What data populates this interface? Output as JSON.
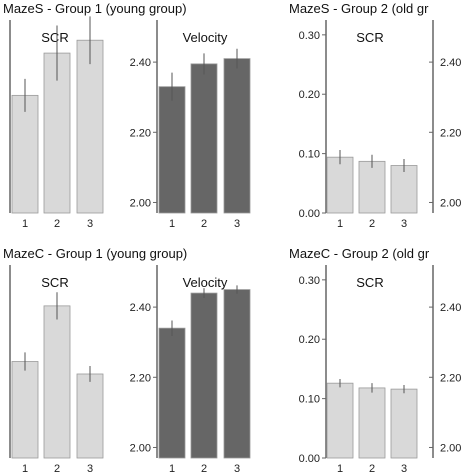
{
  "chart_data": [
    {
      "type": "bar",
      "title": "MazeS - Group 1 (young group)",
      "panel_title": "SCR",
      "categories": [
        "1",
        "2",
        "3"
      ],
      "values": [
        0.228,
        0.274,
        0.288
      ],
      "error": [
        0.018,
        0.03,
        0.026
      ],
      "ylim": [
        0.1,
        0.31
      ],
      "yticks": [],
      "bar_color": "#d9d9d9"
    },
    {
      "type": "bar",
      "title": "",
      "panel_title": "Velocity",
      "categories": [
        "1",
        "2",
        "3"
      ],
      "values": [
        2.33,
        2.395,
        2.41
      ],
      "error": [
        0.04,
        0.03,
        0.028
      ],
      "ylim": [
        1.97,
        2.52
      ],
      "yticks": [
        "2.00",
        "2.20",
        "2.40"
      ],
      "bar_color": "#666666"
    },
    {
      "type": "bar",
      "title": "MazeS - Group 2 (old gr",
      "panel_title": "SCR",
      "categories": [
        "1",
        "2",
        "3"
      ],
      "values": [
        0.094,
        0.087,
        0.08
      ],
      "error": [
        0.012,
        0.011,
        0.011
      ],
      "ylim": [
        0.0,
        0.325
      ],
      "yticks": [
        "0.00",
        "0.10",
        "0.20",
        "0.30"
      ],
      "bar_color": "#d9d9d9"
    },
    {
      "type": "bar",
      "title": "",
      "panel_title": "",
      "categories": [],
      "values": [],
      "ylim": [
        1.97,
        2.52
      ],
      "yticks": [
        "2.00",
        "2.20",
        "2.40"
      ],
      "bar_color": "#666666"
    },
    {
      "type": "bar",
      "title": "MazeC - Group 1 (young group)",
      "panel_title": "SCR",
      "categories": [
        "1",
        "2",
        "3"
      ],
      "values": [
        0.185,
        0.234,
        0.174
      ],
      "error": [
        0.008,
        0.012,
        0.007
      ],
      "ylim": [
        0.1,
        0.27
      ],
      "yticks": [],
      "bar_color": "#d9d9d9"
    },
    {
      "type": "bar",
      "title": "",
      "panel_title": "Velocity",
      "categories": [
        "1",
        "2",
        "3"
      ],
      "values": [
        2.34,
        2.44,
        2.45
      ],
      "error": [
        0.022,
        0.014,
        0.012
      ],
      "ylim": [
        1.97,
        2.52
      ],
      "yticks": [
        "2.00",
        "2.20",
        "2.40"
      ],
      "bar_color": "#666666"
    },
    {
      "type": "bar",
      "title": "MazeC - Group 2 (old gr",
      "panel_title": "SCR",
      "categories": [
        "1",
        "2",
        "3"
      ],
      "values": [
        0.126,
        0.118,
        0.116
      ],
      "error": [
        0.007,
        0.008,
        0.007
      ],
      "ylim": [
        0.0,
        0.325
      ],
      "yticks": [
        "0.00",
        "0.10",
        "0.20",
        "0.30"
      ],
      "bar_color": "#d9d9d9"
    },
    {
      "type": "bar",
      "title": "",
      "panel_title": "",
      "categories": [],
      "values": [],
      "ylim": [
        1.97,
        2.52
      ],
      "yticks": [
        "2.00",
        "2.20",
        "2.40"
      ],
      "bar_color": "#666666"
    }
  ]
}
